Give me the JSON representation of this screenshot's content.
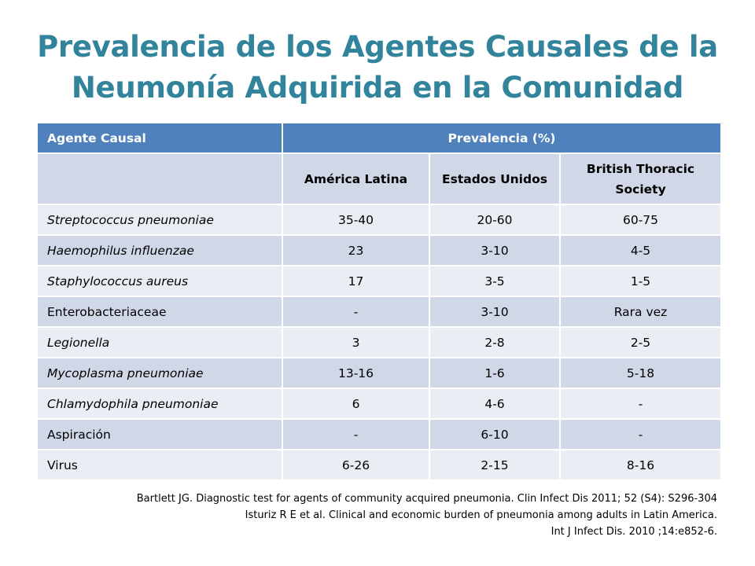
{
  "title": {
    "line1": "Prevalencia de los Agentes Causales de la",
    "line2": "Neumonía Adquirida en la Comunidad"
  },
  "colors": {
    "title": "#31849b",
    "header_bg": "#4f81bd",
    "row_dark": "#d0d8e8",
    "row_light": "#e9edf4"
  },
  "table": {
    "header": {
      "agent": "Agente Causal",
      "prevalence": "Prevalencia (%)"
    },
    "subheaders": [
      "América Latina",
      "Estados Unidos",
      "British Thoracic Society"
    ],
    "rows": [
      {
        "agent": "Streptococcus pneumoniae",
        "italic": true,
        "values": [
          "35-40",
          "20-60",
          "60-75"
        ]
      },
      {
        "agent": "Haemophilus influenzae",
        "italic": true,
        "values": [
          "23",
          "3-10",
          "4-5"
        ]
      },
      {
        "agent": "Staphylococcus aureus",
        "italic": true,
        "values": [
          "17",
          "3-5",
          "1-5"
        ]
      },
      {
        "agent": "Enterobacteriaceae",
        "italic": false,
        "values": [
          "-",
          "3-10",
          "Rara vez"
        ]
      },
      {
        "agent": "Legionella",
        "italic": true,
        "values": [
          "3",
          "2-8",
          "2-5"
        ]
      },
      {
        "agent": "Mycoplasma pneumoniae",
        "italic": true,
        "values": [
          "13-16",
          "1-6",
          "5-18"
        ]
      },
      {
        "agent": "Chlamydophila pneumoniae",
        "italic": true,
        "values": [
          "6",
          "4-6",
          "-"
        ]
      },
      {
        "agent": "Aspiración",
        "italic": false,
        "values": [
          "-",
          "6-10",
          "-"
        ]
      },
      {
        "agent": "Virus",
        "italic": false,
        "values": [
          "6-26",
          "2-15",
          "8-16"
        ]
      }
    ]
  },
  "references": [
    "Bartlett JG. Diagnostic test for agents of community acquired pneumonia. Clin Infect Dis 2011; 52 (S4): S296-304",
    "Isturiz R E et al. Clinical and economic burden of pneumonia among adults in Latin America.",
    "Int J Infect Dis. 2010 ;14:e852-6."
  ]
}
